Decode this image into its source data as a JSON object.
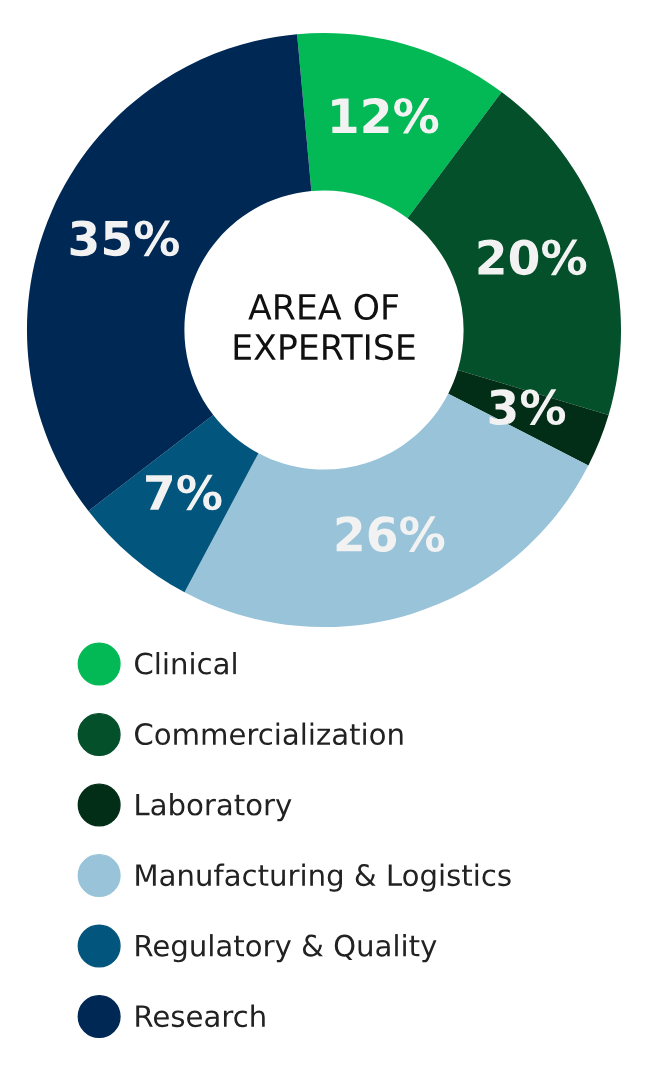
{
  "chart_data": {
    "type": "donut",
    "title": "AREA OF\nEXPERTISE",
    "categories": [
      "Clinical",
      "Commercialization",
      "Laboratory",
      "Manufacturing & Logistics",
      "Regulatory & Quality",
      "Research"
    ],
    "values": [
      12,
      20,
      3,
      26,
      7,
      35
    ],
    "colors": [
      "#02b955",
      "#03502a",
      "#022d16",
      "#98c3d8",
      "#02557d",
      "#002855"
    ],
    "value_labels": [
      "12%",
      "20%",
      "3%",
      "26%",
      "7%",
      "35%"
    ],
    "legend": "bottom"
  }
}
